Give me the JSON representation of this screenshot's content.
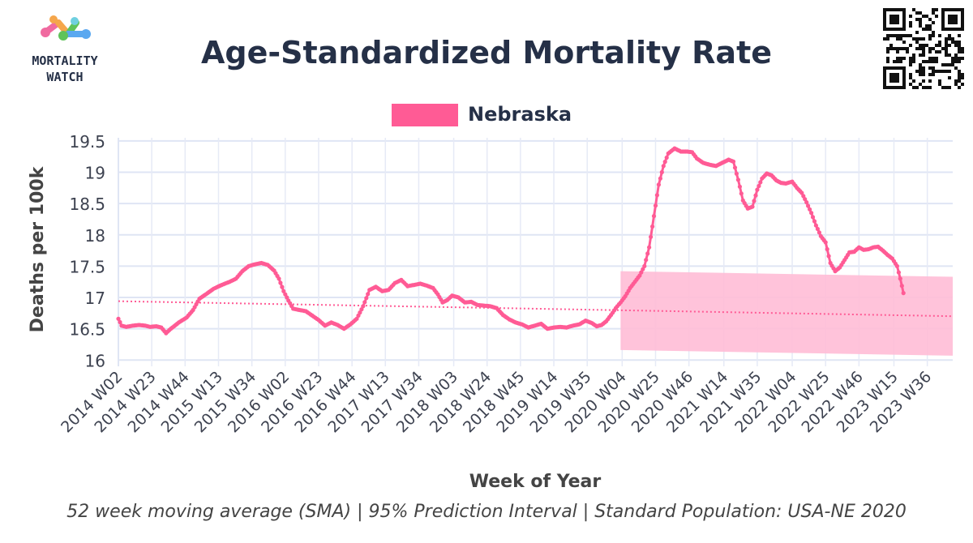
{
  "logo": {
    "text_line1": "MORTALITY",
    "text_line2": "WATCH",
    "colors": [
      "#f06aa0",
      "#f5a64b",
      "#5fc35a",
      "#5aa8f0",
      "#6fd0e0"
    ]
  },
  "chart_data": {
    "type": "line",
    "title": "Age-Standardized Mortality Rate",
    "xlabel": "Week of Year",
    "ylabel": "Deaths per 100k",
    "caption": "52 week moving average (SMA) | 95% Prediction Interval | Standard Population: USA-NE 2020",
    "ylim": [
      15.9,
      19.55
    ],
    "yticks": [
      16,
      16.5,
      17,
      17.5,
      18,
      18.5,
      19,
      19.5
    ],
    "ytick_labels": [
      "16",
      "16.5",
      "17",
      "17.5",
      "18",
      "18.5",
      "19",
      "19.5"
    ],
    "grid": true,
    "legend": {
      "position": "top-center",
      "entries": [
        {
          "name": "Nebraska",
          "color": "#ff5b95"
        }
      ]
    },
    "xtick_labels": [
      "2014 W02",
      "2014 W23",
      "2014 W44",
      "2015 W13",
      "2015 W34",
      "2016 W02",
      "2016 W23",
      "2016 W44",
      "2017 W13",
      "2017 W34",
      "2018 W03",
      "2018 W24",
      "2018 W45",
      "2019 W14",
      "2019 W35",
      "2020 W04",
      "2020 W25",
      "2020 W46",
      "2021 W14",
      "2021 W35",
      "2022 W04",
      "2022 W25",
      "2022 W46",
      "2023 W15",
      "2023 W36"
    ],
    "xtick_index": [
      0,
      21,
      42,
      63,
      84,
      105,
      126,
      147,
      168,
      189,
      211,
      232,
      253,
      274,
      295,
      317,
      338,
      359,
      381,
      402,
      424,
      445,
      466,
      488,
      509
    ],
    "n_points": 526,
    "series": [
      {
        "name": "Nebraska",
        "color": "#ff5b95",
        "keypoints": [
          [
            0,
            16.66
          ],
          [
            2,
            16.55
          ],
          [
            5,
            16.53
          ],
          [
            9,
            16.55
          ],
          [
            13,
            16.56
          ],
          [
            17,
            16.55
          ],
          [
            20,
            16.53
          ],
          [
            24,
            16.54
          ],
          [
            27,
            16.52
          ],
          [
            30,
            16.43
          ],
          [
            33,
            16.5
          ],
          [
            38,
            16.6
          ],
          [
            43,
            16.68
          ],
          [
            47,
            16.8
          ],
          [
            51,
            16.98
          ],
          [
            55,
            17.05
          ],
          [
            60,
            17.14
          ],
          [
            65,
            17.2
          ],
          [
            70,
            17.25
          ],
          [
            74,
            17.3
          ],
          [
            78,
            17.42
          ],
          [
            82,
            17.5
          ],
          [
            86,
            17.53
          ],
          [
            90,
            17.55
          ],
          [
            94,
            17.52
          ],
          [
            98,
            17.43
          ],
          [
            101,
            17.3
          ],
          [
            104,
            17.1
          ],
          [
            107,
            16.95
          ],
          [
            110,
            16.82
          ],
          [
            114,
            16.8
          ],
          [
            118,
            16.78
          ],
          [
            122,
            16.71
          ],
          [
            126,
            16.64
          ],
          [
            130,
            16.55
          ],
          [
            134,
            16.6
          ],
          [
            138,
            16.56
          ],
          [
            142,
            16.5
          ],
          [
            146,
            16.57
          ],
          [
            150,
            16.66
          ],
          [
            154,
            16.86
          ],
          [
            158,
            17.12
          ],
          [
            162,
            17.17
          ],
          [
            166,
            17.1
          ],
          [
            170,
            17.12
          ],
          [
            174,
            17.23
          ],
          [
            178,
            17.28
          ],
          [
            182,
            17.18
          ],
          [
            186,
            17.2
          ],
          [
            190,
            17.22
          ],
          [
            194,
            17.19
          ],
          [
            198,
            17.15
          ],
          [
            201,
            17.05
          ],
          [
            204,
            16.92
          ],
          [
            207,
            16.96
          ],
          [
            210,
            17.03
          ],
          [
            214,
            17.0
          ],
          [
            218,
            16.92
          ],
          [
            222,
            16.93
          ],
          [
            226,
            16.88
          ],
          [
            230,
            16.87
          ],
          [
            234,
            16.86
          ],
          [
            238,
            16.83
          ],
          [
            242,
            16.72
          ],
          [
            246,
            16.65
          ],
          [
            250,
            16.6
          ],
          [
            254,
            16.57
          ],
          [
            258,
            16.52
          ],
          [
            262,
            16.55
          ],
          [
            266,
            16.58
          ],
          [
            270,
            16.5
          ],
          [
            274,
            16.52
          ],
          [
            278,
            16.53
          ],
          [
            282,
            16.52
          ],
          [
            286,
            16.55
          ],
          [
            290,
            16.57
          ],
          [
            294,
            16.63
          ],
          [
            298,
            16.59
          ],
          [
            301,
            16.54
          ],
          [
            304,
            16.56
          ],
          [
            307,
            16.62
          ],
          [
            310,
            16.72
          ],
          [
            313,
            16.83
          ],
          [
            316,
            16.92
          ],
          [
            319,
            17.02
          ],
          [
            322,
            17.15
          ],
          [
            325,
            17.25
          ],
          [
            328,
            17.35
          ],
          [
            331,
            17.5
          ],
          [
            334,
            17.8
          ],
          [
            337,
            18.3
          ],
          [
            340,
            18.8
          ],
          [
            343,
            19.1
          ],
          [
            346,
            19.3
          ],
          [
            350,
            19.38
          ],
          [
            354,
            19.33
          ],
          [
            358,
            19.33
          ],
          [
            361,
            19.32
          ],
          [
            364,
            19.22
          ],
          [
            368,
            19.15
          ],
          [
            372,
            19.12
          ],
          [
            376,
            19.1
          ],
          [
            380,
            19.15
          ],
          [
            384,
            19.2
          ],
          [
            387,
            19.17
          ],
          [
            390,
            18.88
          ],
          [
            393,
            18.55
          ],
          [
            396,
            18.42
          ],
          [
            399,
            18.45
          ],
          [
            402,
            18.72
          ],
          [
            405,
            18.9
          ],
          [
            408,
            18.98
          ],
          [
            411,
            18.95
          ],
          [
            414,
            18.87
          ],
          [
            417,
            18.83
          ],
          [
            420,
            18.82
          ],
          [
            424,
            18.85
          ],
          [
            427,
            18.75
          ],
          [
            430,
            18.67
          ],
          [
            433,
            18.52
          ],
          [
            436,
            18.35
          ],
          [
            439,
            18.15
          ],
          [
            442,
            17.98
          ],
          [
            445,
            17.88
          ],
          [
            448,
            17.55
          ],
          [
            451,
            17.42
          ],
          [
            454,
            17.48
          ],
          [
            457,
            17.6
          ],
          [
            460,
            17.72
          ],
          [
            463,
            17.73
          ],
          [
            466,
            17.8
          ],
          [
            469,
            17.76
          ],
          [
            472,
            17.77
          ],
          [
            475,
            17.8
          ],
          [
            478,
            17.81
          ],
          [
            481,
            17.75
          ],
          [
            484,
            17.68
          ],
          [
            487,
            17.62
          ],
          [
            490,
            17.5
          ],
          [
            492,
            17.3
          ],
          [
            494,
            17.07
          ]
        ]
      },
      {
        "name": "Baseline",
        "style": "dotted",
        "color": "#ff5b95",
        "start": [
          0,
          16.94
        ],
        "end": [
          525,
          16.7
        ]
      },
      {
        "name": "95% Prediction Interval",
        "style": "band",
        "color": "#ffbdd6",
        "x_range": [
          316,
          525
        ],
        "upper": [
          17.42,
          17.33
        ],
        "lower": [
          16.16,
          16.07
        ]
      }
    ]
  }
}
